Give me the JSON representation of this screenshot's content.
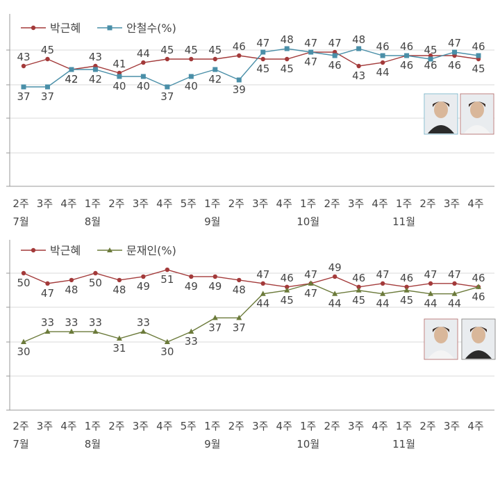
{
  "chart_data": [
    {
      "type": "line",
      "categories": [
        "2주",
        "3주",
        "4주",
        "1주",
        "2주",
        "3주",
        "4주",
        "5주",
        "1주",
        "2주",
        "3주",
        "4주",
        "1주",
        "2주",
        "3주",
        "4주",
        "1주",
        "2주",
        "3주",
        "4주"
      ],
      "months": [
        {
          "label": "7월",
          "index": 0
        },
        {
          "label": "8월",
          "index": 3
        },
        {
          "label": "9월",
          "index": 8
        },
        {
          "label": "10월",
          "index": 12
        },
        {
          "label": "11월",
          "index": 16
        }
      ],
      "legend_suffix": "(%)",
      "series": [
        {
          "name": "박근혜",
          "color": "#a33a3a",
          "values": [
            43,
            45,
            42,
            43,
            41,
            44,
            45,
            45,
            45,
            46,
            45,
            45,
            47,
            47,
            43,
            44,
            46,
            46,
            46,
            45
          ]
        },
        {
          "name": "안철수",
          "color": "#4a8fa8",
          "values": [
            37,
            37,
            42,
            42,
            40,
            40,
            37,
            40,
            42,
            39,
            47,
            48,
            47,
            46,
            48,
            46,
            46,
            45,
            47,
            46
          ]
        }
      ],
      "label_positions": [
        [
          "above",
          "above",
          "below",
          "above",
          "above",
          "above",
          "above",
          "above",
          "above",
          "above",
          "below",
          "below",
          "below",
          "above",
          "below",
          "below",
          "below",
          "below",
          "below",
          "below"
        ],
        [
          "below",
          "below",
          "below",
          "below",
          "below",
          "below",
          "below",
          "below",
          "below",
          "below",
          "above",
          "above",
          "above",
          "below",
          "above",
          "above",
          "above",
          "above",
          "above",
          "above"
        ]
      ],
      "ylim": [
        20,
        50
      ],
      "grid": true,
      "legend": "top-left",
      "photos": [
        "안철수",
        "박근혜"
      ]
    },
    {
      "type": "line",
      "categories": [
        "2주",
        "3주",
        "4주",
        "1주",
        "2주",
        "3주",
        "4주",
        "5주",
        "1주",
        "2주",
        "3주",
        "4주",
        "1주",
        "2주",
        "3주",
        "4주",
        "1주",
        "2주",
        "3주",
        "4주"
      ],
      "months": [
        {
          "label": "7월",
          "index": 0
        },
        {
          "label": "8월",
          "index": 3
        },
        {
          "label": "9월",
          "index": 8
        },
        {
          "label": "10월",
          "index": 12
        },
        {
          "label": "11월",
          "index": 16
        }
      ],
      "legend_suffix": "(%)",
      "series": [
        {
          "name": "박근혜",
          "color": "#a33a3a",
          "values": [
            50,
            47,
            48,
            50,
            48,
            49,
            51,
            49,
            49,
            48,
            47,
            46,
            47,
            49,
            46,
            47,
            46,
            47,
            47,
            46
          ]
        },
        {
          "name": "문재인",
          "color": "#6b7a3a",
          "values": [
            30,
            33,
            33,
            33,
            31,
            33,
            30,
            33,
            37,
            37,
            44,
            45,
            47,
            44,
            45,
            44,
            45,
            44,
            44,
            46
          ]
        }
      ],
      "label_positions": [
        [
          "below",
          "below",
          "below",
          "below",
          "below",
          "below",
          "below",
          "below",
          "below",
          "below",
          "above",
          "above",
          "above",
          "above",
          "above",
          "above",
          "above",
          "above",
          "above",
          "above"
        ],
        [
          "below",
          "above",
          "above",
          "above",
          "below",
          "above",
          "below",
          "below",
          "below",
          "below",
          "below",
          "below",
          "below",
          "below",
          "below",
          "below",
          "below",
          "below",
          "below",
          "below"
        ]
      ],
      "ylim": [
        20,
        55
      ],
      "grid": true,
      "legend": "top-left",
      "photos": [
        "박근혜",
        "문재인"
      ]
    }
  ]
}
